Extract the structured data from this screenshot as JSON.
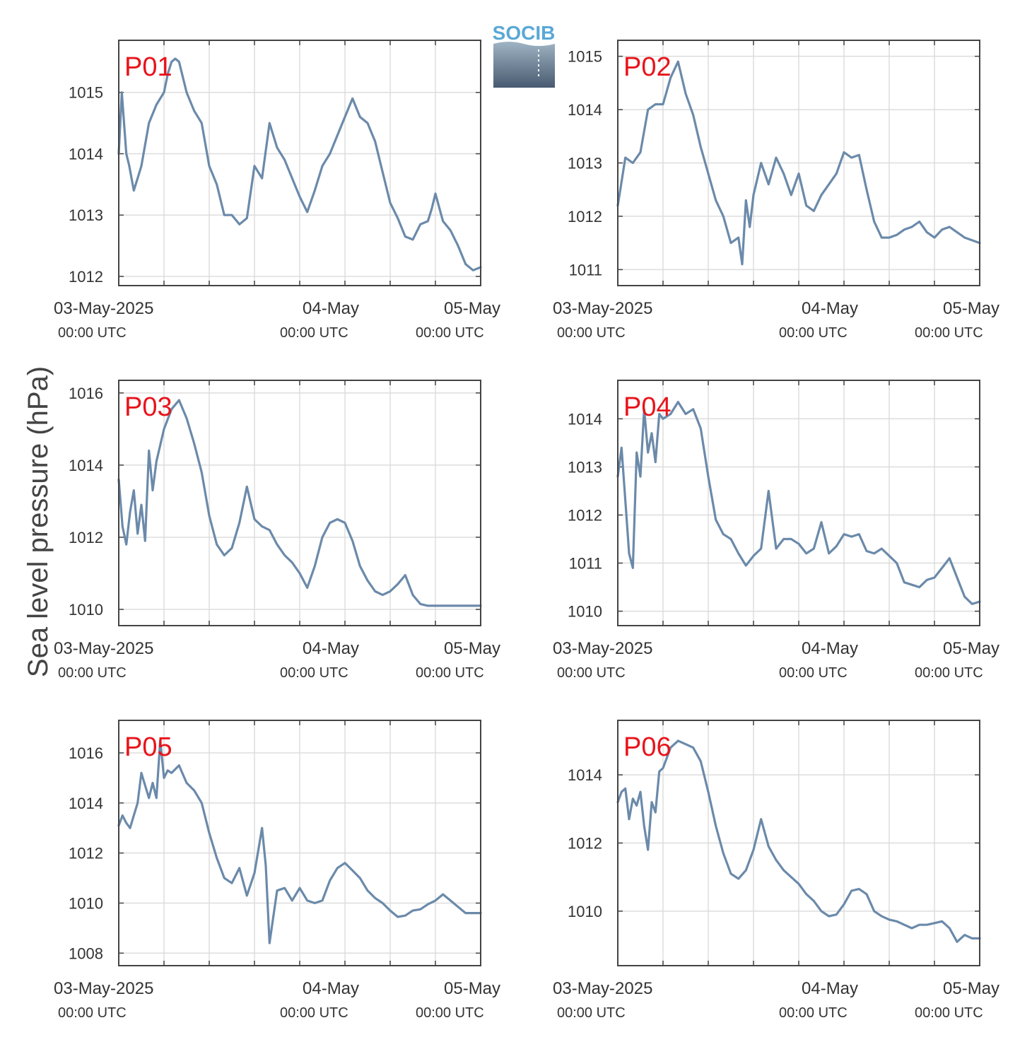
{
  "figure": {
    "ylabel": "Sea level pressure (hPa)",
    "logo_text": "SOCIB",
    "x_axis": {
      "date_labels": [
        "03-May-2025",
        "04-May",
        "05-May"
      ],
      "time_labels": [
        "00:00 UTC",
        "00:00 UTC",
        "00:00 UTC"
      ]
    },
    "colors": {
      "line": "#6b8aaa",
      "panel_label": "#e8141b",
      "grid": "#dddddd",
      "axes": "#444444",
      "logo_top": "#5aa8d6",
      "logo_bottom": "#485a70"
    }
  },
  "chart_data": [
    {
      "type": "line",
      "label": "P01",
      "xlabel": "",
      "ylabel": "Sea level pressure (hPa)",
      "xlim": [
        -6,
        42
      ],
      "ylim": [
        1011.85,
        1015.85
      ],
      "yticks": [
        1012,
        1013,
        1014,
        1015
      ],
      "grid": true,
      "x_unit": "hours since 03-May-2025 00:00 UTC",
      "x": [
        -6,
        -5.6,
        -5,
        -4.6,
        -4,
        -3.5,
        -3,
        -2,
        -1,
        0,
        0.5,
        1,
        1.5,
        2,
        3,
        4,
        5,
        6,
        7,
        8,
        9,
        10,
        11,
        12,
        13,
        14,
        15,
        16,
        17,
        18,
        19,
        20,
        21,
        22,
        23,
        24,
        25,
        26,
        27,
        28,
        29,
        30,
        31,
        32,
        33,
        34,
        35,
        35.5,
        36,
        37,
        38,
        39,
        40,
        41,
        42
      ],
      "y": [
        1014,
        1015,
        1014,
        1013.8,
        1013.4,
        1013.6,
        1013.8,
        1014.5,
        1014.8,
        1015,
        1015.3,
        1015.5,
        1015.55,
        1015.5,
        1015,
        1014.7,
        1014.5,
        1013.8,
        1013.5,
        1013,
        1013,
        1012.85,
        1012.95,
        1013.8,
        1013.6,
        1014.5,
        1014.1,
        1013.9,
        1013.6,
        1013.3,
        1013.05,
        1013.4,
        1013.8,
        1014,
        1014.3,
        1014.6,
        1014.9,
        1014.6,
        1014.5,
        1014.2,
        1013.7,
        1013.2,
        1012.95,
        1012.65,
        1012.6,
        1012.85,
        1012.9,
        1013.1,
        1013.35,
        1012.9,
        1012.75,
        1012.5,
        1012.2,
        1012.1,
        1012.15
      ]
    },
    {
      "type": "line",
      "label": "P02",
      "xlabel": "",
      "ylabel": "Sea level pressure (hPa)",
      "xlim": [
        -6,
        42
      ],
      "ylim": [
        1010.7,
        1015.3
      ],
      "yticks": [
        1011,
        1012,
        1013,
        1014,
        1015
      ],
      "grid": true,
      "x_unit": "hours since 03-May-2025 00:00 UTC",
      "x": [
        -6,
        -5,
        -4,
        -3,
        -2,
        -1,
        0,
        1,
        2,
        3,
        4,
        5,
        6,
        7,
        8,
        9,
        10,
        10.5,
        11,
        11.5,
        12,
        13,
        14,
        15,
        16,
        17,
        18,
        19,
        20,
        21,
        22,
        23,
        24,
        25,
        26,
        27,
        28,
        29,
        30,
        31,
        32,
        33,
        34,
        35,
        36,
        37,
        38,
        39,
        40,
        41,
        42
      ],
      "y": [
        1012.2,
        1013.1,
        1013,
        1013.2,
        1014,
        1014.1,
        1014.1,
        1014.6,
        1014.9,
        1014.3,
        1013.9,
        1013.3,
        1012.8,
        1012.3,
        1012,
        1011.5,
        1011.6,
        1011.1,
        1012.3,
        1011.8,
        1012.4,
        1013,
        1012.6,
        1013.1,
        1012.8,
        1012.4,
        1012.8,
        1012.2,
        1012.1,
        1012.4,
        1012.6,
        1012.8,
        1013.2,
        1013.1,
        1013.15,
        1012.5,
        1011.9,
        1011.6,
        1011.6,
        1011.65,
        1011.75,
        1011.8,
        1011.9,
        1011.7,
        1011.6,
        1011.75,
        1011.8,
        1011.7,
        1011.6,
        1011.55,
        1011.5
      ]
    },
    {
      "type": "line",
      "label": "P03",
      "xlabel": "",
      "ylabel": "Sea level pressure (hPa)",
      "xlim": [
        -6,
        42
      ],
      "ylim": [
        1009.55,
        1016.35
      ],
      "yticks": [
        1010,
        1012,
        1014,
        1016
      ],
      "grid": true,
      "x_unit": "hours since 03-May-2025 00:00 UTC",
      "x": [
        -6,
        -5.5,
        -5,
        -4.5,
        -4,
        -3.5,
        -3,
        -2.5,
        -2,
        -1.5,
        -1,
        0,
        1,
        2,
        3,
        4,
        5,
        6,
        7,
        8,
        9,
        10,
        11,
        12,
        13,
        14,
        15,
        16,
        17,
        18,
        19,
        20,
        21,
        22,
        23,
        24,
        25,
        26,
        27,
        28,
        29,
        30,
        31,
        32,
        33,
        34,
        35,
        36,
        37,
        38,
        39,
        40,
        41,
        42
      ],
      "y": [
        1013.6,
        1012.3,
        1011.8,
        1012.7,
        1013.3,
        1012.1,
        1012.9,
        1011.9,
        1014.4,
        1013.3,
        1014.1,
        1015,
        1015.55,
        1015.8,
        1015.3,
        1014.6,
        1013.8,
        1012.6,
        1011.8,
        1011.5,
        1011.7,
        1012.4,
        1013.4,
        1012.5,
        1012.3,
        1012.2,
        1011.8,
        1011.5,
        1011.3,
        1011,
        1010.6,
        1011.2,
        1012,
        1012.4,
        1012.5,
        1012.4,
        1011.9,
        1011.2,
        1010.8,
        1010.5,
        1010.4,
        1010.5,
        1010.7,
        1010.95,
        1010.4,
        1010.15,
        1010.1,
        1010.1,
        1010.1,
        1010.1,
        1010.1,
        1010.1,
        1010.1,
        1010.1
      ]
    },
    {
      "type": "line",
      "label": "P04",
      "xlabel": "",
      "ylabel": "Sea level pressure (hPa)",
      "xlim": [
        -6,
        42
      ],
      "ylim": [
        1009.7,
        1014.8
      ],
      "yticks": [
        1010,
        1011,
        1012,
        1013,
        1014
      ],
      "grid": true,
      "x_unit": "hours since 03-May-2025 00:00 UTC",
      "x": [
        -6,
        -5.5,
        -5,
        -4.5,
        -4,
        -3.5,
        -3,
        -2.5,
        -2,
        -1.5,
        -1,
        -0.5,
        0,
        1,
        2,
        3,
        4,
        5,
        6,
        7,
        8,
        9,
        10,
        11,
        12,
        13,
        14,
        15,
        16,
        17,
        18,
        19,
        20,
        21,
        22,
        23,
        24,
        25,
        26,
        27,
        28,
        29,
        30,
        31,
        32,
        33,
        34,
        35,
        36,
        37,
        38,
        39,
        40,
        41,
        42
      ],
      "y": [
        1012.8,
        1013.4,
        1012.3,
        1011.2,
        1010.9,
        1013.3,
        1012.8,
        1014.2,
        1013.3,
        1013.7,
        1013.1,
        1014.1,
        1014,
        1014.1,
        1014.35,
        1014.1,
        1014.2,
        1013.8,
        1012.8,
        1011.9,
        1011.6,
        1011.5,
        1011.2,
        1010.95,
        1011.15,
        1011.3,
        1012.5,
        1011.3,
        1011.5,
        1011.5,
        1011.4,
        1011.2,
        1011.3,
        1011.85,
        1011.2,
        1011.35,
        1011.6,
        1011.55,
        1011.6,
        1011.25,
        1011.2,
        1011.3,
        1011.15,
        1011,
        1010.6,
        1010.55,
        1010.5,
        1010.65,
        1010.7,
        1010.9,
        1011.1,
        1010.7,
        1010.3,
        1010.15,
        1010.2
      ]
    },
    {
      "type": "line",
      "label": "P05",
      "xlabel": "",
      "ylabel": "Sea level pressure (hPa)",
      "xlim": [
        -6,
        42
      ],
      "ylim": [
        1007.5,
        1017.3
      ],
      "yticks": [
        1008,
        1010,
        1012,
        1014,
        1016
      ],
      "grid": true,
      "x_unit": "hours since 03-May-2025 00:00 UTC",
      "x": [
        -6,
        -5.5,
        -5,
        -4.5,
        -4,
        -3.5,
        -3,
        -2.5,
        -2,
        -1.5,
        -1,
        -0.5,
        0,
        0.5,
        1,
        2,
        3,
        4,
        5,
        6,
        7,
        8,
        9,
        10,
        11,
        12,
        13,
        13.5,
        14,
        15,
        16,
        17,
        18,
        19,
        20,
        21,
        22,
        23,
        24,
        25,
        26,
        27,
        28,
        29,
        30,
        31,
        32,
        33,
        34,
        35,
        36,
        37,
        38,
        39,
        40,
        41,
        42
      ],
      "y": [
        1013.1,
        1013.5,
        1013.2,
        1013,
        1013.5,
        1014,
        1015.2,
        1014.7,
        1014.2,
        1014.8,
        1014.2,
        1016.5,
        1015,
        1015.3,
        1015.2,
        1015.5,
        1014.8,
        1014.5,
        1014,
        1012.8,
        1011.8,
        1011,
        1010.8,
        1011.4,
        1010.3,
        1011.2,
        1013,
        1011.5,
        1008.4,
        1010.5,
        1010.6,
        1010.1,
        1010.6,
        1010.1,
        1010,
        1010.1,
        1010.9,
        1011.4,
        1011.6,
        1011.3,
        1011,
        1010.5,
        1010.2,
        1010,
        1009.7,
        1009.45,
        1009.5,
        1009.7,
        1009.75,
        1009.95,
        1010.1,
        1010.35,
        1010.1,
        1009.85,
        1009.6,
        1009.6,
        1009.6
      ]
    },
    {
      "type": "line",
      "label": "P06",
      "xlabel": "",
      "ylabel": "Sea level pressure (hPa)",
      "xlim": [
        -6,
        42
      ],
      "ylim": [
        1008.4,
        1015.6
      ],
      "yticks": [
        1010,
        1012,
        1014
      ],
      "grid": true,
      "x_unit": "hours since 03-May-2025 00:00 UTC",
      "x": [
        -6,
        -5.5,
        -5,
        -4.5,
        -4,
        -3.5,
        -3,
        -2.5,
        -2,
        -1.5,
        -1,
        -0.5,
        0,
        1,
        2,
        3,
        4,
        5,
        6,
        7,
        8,
        9,
        10,
        11,
        12,
        13,
        14,
        15,
        16,
        17,
        18,
        19,
        20,
        21,
        22,
        23,
        24,
        25,
        26,
        27,
        28,
        29,
        30,
        31,
        32,
        33,
        34,
        35,
        36,
        37,
        38,
        39,
        40,
        41,
        42
      ],
      "y": [
        1013.2,
        1013.5,
        1013.6,
        1012.7,
        1013.3,
        1013.1,
        1013.5,
        1012.5,
        1011.8,
        1013.2,
        1012.9,
        1014.1,
        1014.2,
        1014.8,
        1015,
        1014.9,
        1014.8,
        1014.4,
        1013.5,
        1012.5,
        1011.7,
        1011.1,
        1010.95,
        1011.2,
        1011.8,
        1012.7,
        1011.9,
        1011.5,
        1011.2,
        1011,
        1010.8,
        1010.5,
        1010.3,
        1010,
        1009.85,
        1009.9,
        1010.2,
        1010.6,
        1010.65,
        1010.5,
        1010.0,
        1009.85,
        1009.75,
        1009.7,
        1009.6,
        1009.5,
        1009.6,
        1009.6,
        1009.65,
        1009.7,
        1009.5,
        1009.1,
        1009.3,
        1009.2,
        1009.2
      ]
    }
  ]
}
